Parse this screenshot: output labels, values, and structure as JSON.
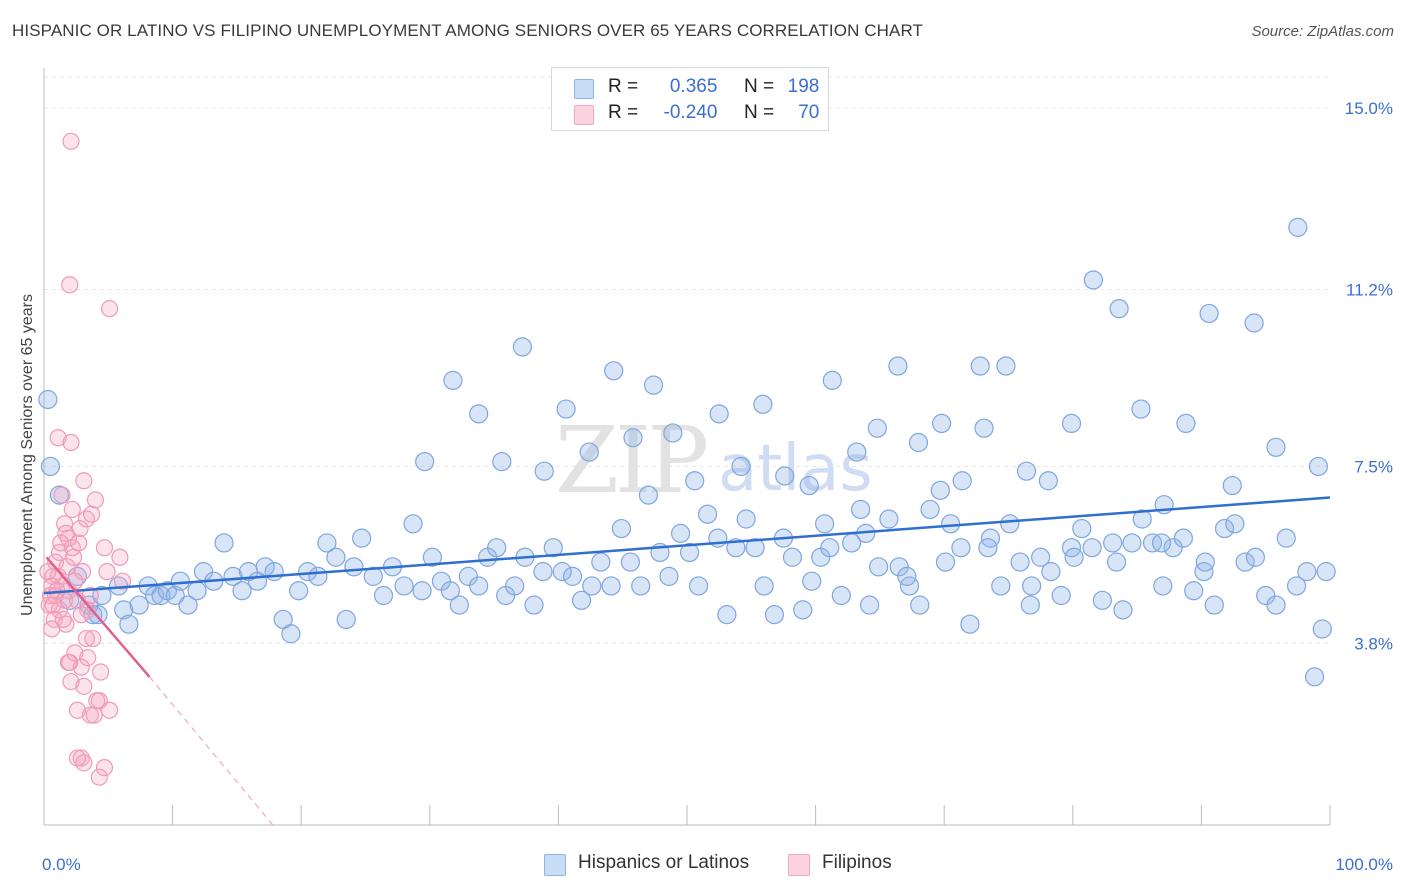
{
  "title": "HISPANIC OR LATINO VS FILIPINO UNEMPLOYMENT AMONG SENIORS OVER 65 YEARS CORRELATION CHART",
  "source": "Source: ZipAtlas.com",
  "watermark": "ZIPatlas",
  "colors": {
    "blue": "#8fb4e8",
    "blue_line": "#2f6fd0",
    "pink": "#f4a7c0",
    "pink_line": "#e0608f",
    "axis_text": "#3a6fd0"
  },
  "legend": {
    "rows": [
      {
        "r_label": "R =",
        "r_value": "0.365",
        "n_label": "N =",
        "n_value": "198",
        "color": "#8fb4e8"
      },
      {
        "r_label": "R =",
        "r_value": "-0.240",
        "n_label": "N =",
        "n_value": "70",
        "color": "#f4a7c0"
      }
    ]
  },
  "bottom_legend": [
    {
      "label": "Hispanics or Latinos",
      "color": "#8fb4e8"
    },
    {
      "label": "Filipinos",
      "color": "#f4a7c0"
    }
  ],
  "chart_data": {
    "type": "scatter",
    "title": "HISPANIC OR LATINO VS FILIPINO UNEMPLOYMENT AMONG SENIORS OVER 65 YEARS CORRELATION CHART",
    "xlabel": "",
    "ylabel": "Unemployment Among Seniors over 65 years",
    "xlim": [
      0,
      100
    ],
    "ylim": [
      0.0,
      15.75
    ],
    "x_tick_labels": [
      "0.0%",
      "100.0%"
    ],
    "y_ticks": [
      3.8,
      7.5,
      11.2,
      15.0
    ],
    "y_tick_labels": [
      "3.8%",
      "7.5%",
      "11.2%",
      "15.0%"
    ],
    "grid": true,
    "legend_position": "top-center",
    "series": [
      {
        "name": "Hispanics or Latinos",
        "trend": {
          "x": [
            0,
            100
          ],
          "y": [
            4.85,
            6.85
          ]
        },
        "points": [
          [
            0.3,
            8.9
          ],
          [
            0.5,
            7.5
          ],
          [
            1.2,
            6.9
          ],
          [
            2.0,
            4.7
          ],
          [
            2.6,
            5.2
          ],
          [
            3.5,
            4.6
          ],
          [
            3.8,
            4.4
          ],
          [
            4.2,
            4.4
          ],
          [
            4.5,
            4.8
          ],
          [
            5.8,
            5.0
          ],
          [
            6.2,
            4.5
          ],
          [
            6.6,
            4.2
          ],
          [
            7.4,
            4.6
          ],
          [
            8.1,
            5.0
          ],
          [
            8.6,
            4.8
          ],
          [
            9.1,
            4.8
          ],
          [
            9.6,
            4.9
          ],
          [
            10.2,
            4.8
          ],
          [
            10.6,
            5.1
          ],
          [
            11.2,
            4.6
          ],
          [
            11.9,
            4.9
          ],
          [
            12.4,
            5.3
          ],
          [
            13.2,
            5.1
          ],
          [
            14.0,
            5.9
          ],
          [
            14.7,
            5.2
          ],
          [
            15.4,
            4.9
          ],
          [
            15.9,
            5.3
          ],
          [
            16.6,
            5.1
          ],
          [
            17.2,
            5.4
          ],
          [
            17.9,
            5.3
          ],
          [
            18.6,
            4.3
          ],
          [
            19.2,
            4.0
          ],
          [
            19.8,
            4.9
          ],
          [
            20.5,
            5.3
          ],
          [
            21.3,
            5.2
          ],
          [
            22.0,
            5.9
          ],
          [
            22.7,
            5.6
          ],
          [
            23.5,
            4.3
          ],
          [
            24.1,
            5.4
          ],
          [
            24.7,
            6.0
          ],
          [
            25.6,
            5.2
          ],
          [
            26.4,
            4.8
          ],
          [
            27.1,
            5.4
          ],
          [
            28.0,
            5.0
          ],
          [
            28.7,
            6.3
          ],
          [
            29.4,
            4.9
          ],
          [
            30.2,
            5.6
          ],
          [
            30.9,
            5.1
          ],
          [
            31.6,
            4.9
          ],
          [
            32.3,
            4.6
          ],
          [
            33.0,
            5.2
          ],
          [
            33.8,
            5.0
          ],
          [
            34.5,
            5.6
          ],
          [
            35.2,
            5.8
          ],
          [
            35.9,
            4.8
          ],
          [
            36.6,
            5.0
          ],
          [
            37.4,
            5.6
          ],
          [
            38.1,
            4.6
          ],
          [
            38.8,
            5.3
          ],
          [
            39.6,
            5.8
          ],
          [
            40.3,
            5.3
          ],
          [
            41.1,
            5.2
          ],
          [
            41.8,
            4.7
          ],
          [
            42.6,
            5.0
          ],
          [
            43.3,
            5.5
          ],
          [
            44.1,
            5.0
          ],
          [
            44.9,
            6.2
          ],
          [
            45.6,
            5.5
          ],
          [
            46.4,
            5.0
          ],
          [
            47.0,
            6.9
          ],
          [
            47.9,
            5.7
          ],
          [
            48.6,
            5.2
          ],
          [
            49.5,
            6.1
          ],
          [
            50.2,
            5.7
          ],
          [
            50.9,
            5.0
          ],
          [
            51.6,
            6.5
          ],
          [
            52.4,
            6.0
          ],
          [
            53.1,
            4.4
          ],
          [
            53.8,
            5.8
          ],
          [
            54.6,
            6.4
          ],
          [
            55.3,
            5.8
          ],
          [
            56.0,
            5.0
          ],
          [
            56.8,
            4.4
          ],
          [
            57.5,
            6.0
          ],
          [
            58.2,
            5.6
          ],
          [
            59.0,
            4.5
          ],
          [
            59.7,
            5.1
          ],
          [
            60.4,
            5.6
          ],
          [
            61.1,
            5.8
          ],
          [
            62.0,
            4.8
          ],
          [
            62.8,
            5.9
          ],
          [
            63.5,
            6.6
          ],
          [
            64.2,
            4.6
          ],
          [
            64.9,
            5.4
          ],
          [
            65.7,
            6.4
          ],
          [
            66.5,
            5.4
          ],
          [
            67.3,
            5.0
          ],
          [
            68.1,
            4.6
          ],
          [
            68.9,
            6.6
          ],
          [
            69.7,
            7.0
          ],
          [
            70.5,
            6.3
          ],
          [
            71.3,
            5.8
          ],
          [
            72.0,
            4.2
          ],
          [
            72.8,
            9.6
          ],
          [
            73.6,
            6.0
          ],
          [
            74.4,
            5.0
          ],
          [
            75.1,
            6.3
          ],
          [
            75.9,
            5.5
          ],
          [
            76.7,
            4.6
          ],
          [
            77.5,
            5.6
          ],
          [
            78.3,
            5.3
          ],
          [
            79.1,
            4.8
          ],
          [
            79.9,
            5.8
          ],
          [
            80.7,
            6.2
          ],
          [
            81.5,
            5.8
          ],
          [
            82.3,
            4.7
          ],
          [
            83.1,
            5.9
          ],
          [
            83.9,
            4.5
          ],
          [
            84.6,
            5.9
          ],
          [
            85.4,
            6.4
          ],
          [
            86.2,
            5.9
          ],
          [
            87.0,
            5.0
          ],
          [
            87.8,
            5.8
          ],
          [
            88.6,
            6.0
          ],
          [
            89.4,
            4.9
          ],
          [
            90.2,
            5.3
          ],
          [
            91.0,
            4.6
          ],
          [
            91.8,
            6.2
          ],
          [
            92.6,
            6.3
          ],
          [
            93.4,
            5.5
          ],
          [
            94.2,
            5.6
          ],
          [
            95.0,
            4.8
          ],
          [
            95.8,
            4.6
          ],
          [
            96.6,
            6.0
          ],
          [
            97.4,
            5.0
          ],
          [
            98.2,
            5.3
          ],
          [
            98.8,
            3.1
          ],
          [
            99.4,
            4.1
          ],
          [
            99.7,
            5.3
          ],
          [
            29.6,
            7.6
          ],
          [
            31.8,
            9.3
          ],
          [
            33.8,
            8.6
          ],
          [
            35.6,
            7.6
          ],
          [
            37.2,
            10.0
          ],
          [
            38.9,
            7.4
          ],
          [
            40.6,
            8.7
          ],
          [
            42.4,
            7.8
          ],
          [
            44.3,
            9.5
          ],
          [
            45.8,
            8.1
          ],
          [
            47.4,
            9.2
          ],
          [
            48.9,
            8.2
          ],
          [
            50.6,
            7.2
          ],
          [
            52.5,
            8.6
          ],
          [
            54.2,
            7.5
          ],
          [
            55.9,
            8.8
          ],
          [
            57.6,
            7.3
          ],
          [
            59.5,
            7.1
          ],
          [
            61.3,
            9.3
          ],
          [
            63.2,
            7.8
          ],
          [
            64.8,
            8.3
          ],
          [
            66.4,
            9.6
          ],
          [
            68.0,
            8.0
          ],
          [
            69.8,
            8.4
          ],
          [
            71.4,
            7.2
          ],
          [
            73.1,
            8.3
          ],
          [
            74.8,
            9.6
          ],
          [
            76.4,
            7.4
          ],
          [
            78.1,
            7.2
          ],
          [
            79.9,
            8.4
          ],
          [
            81.6,
            11.4
          ],
          [
            83.6,
            10.8
          ],
          [
            85.3,
            8.7
          ],
          [
            87.1,
            6.7
          ],
          [
            88.8,
            8.4
          ],
          [
            90.6,
            10.7
          ],
          [
            92.4,
            7.1
          ],
          [
            94.1,
            10.5
          ],
          [
            95.8,
            7.9
          ],
          [
            97.5,
            12.5
          ],
          [
            99.1,
            7.5
          ],
          [
            60.7,
            6.3
          ],
          [
            63.9,
            6.1
          ],
          [
            67.1,
            5.2
          ],
          [
            70.1,
            5.5
          ],
          [
            73.4,
            5.8
          ],
          [
            76.8,
            5.0
          ],
          [
            80.1,
            5.6
          ],
          [
            83.4,
            5.5
          ],
          [
            86.9,
            5.9
          ],
          [
            90.3,
            5.5
          ]
        ]
      },
      {
        "name": "Filipinos",
        "trend": {
          "x": [
            0.2,
            8.2
          ],
          "y": [
            5.6,
            3.1
          ]
        },
        "trend_dashed": {
          "x": [
            8.2,
            17.8
          ],
          "y": [
            3.1,
            0.0
          ]
        },
        "points": [
          [
            2.1,
            14.3
          ],
          [
            2.0,
            11.3
          ],
          [
            5.1,
            10.8
          ],
          [
            1.1,
            8.1
          ],
          [
            2.1,
            8.0
          ],
          [
            3.1,
            7.2
          ],
          [
            1.4,
            6.9
          ],
          [
            4.0,
            6.8
          ],
          [
            2.2,
            6.6
          ],
          [
            3.3,
            6.4
          ],
          [
            1.6,
            6.3
          ],
          [
            2.8,
            6.2
          ],
          [
            1.9,
            6.0
          ],
          [
            4.7,
            5.8
          ],
          [
            1.2,
            5.7
          ],
          [
            2.3,
            5.6
          ],
          [
            0.9,
            5.5
          ],
          [
            1.8,
            5.4
          ],
          [
            3.0,
            5.3
          ],
          [
            0.7,
            5.2
          ],
          [
            1.1,
            5.2
          ],
          [
            2.4,
            5.1
          ],
          [
            0.6,
            5.0
          ],
          [
            1.4,
            5.0
          ],
          [
            1.9,
            4.9
          ],
          [
            0.5,
            4.8
          ],
          [
            0.9,
            4.8
          ],
          [
            1.6,
            4.7
          ],
          [
            2.6,
            4.7
          ],
          [
            0.4,
            4.6
          ],
          [
            1.2,
            4.5
          ],
          [
            3.4,
            4.5
          ],
          [
            0.8,
            4.3
          ],
          [
            1.7,
            4.2
          ],
          [
            2.9,
            4.4
          ],
          [
            0.6,
            4.1
          ],
          [
            3.8,
            3.9
          ],
          [
            2.4,
            3.6
          ],
          [
            3.4,
            3.5
          ],
          [
            1.9,
            3.4
          ],
          [
            2.9,
            3.3
          ],
          [
            4.4,
            3.2
          ],
          [
            2.1,
            3.0
          ],
          [
            3.1,
            2.9
          ],
          [
            4.3,
            2.6
          ],
          [
            2.6,
            2.4
          ],
          [
            3.6,
            2.3
          ],
          [
            5.1,
            2.4
          ],
          [
            3.9,
            2.3
          ],
          [
            2.9,
            1.4
          ],
          [
            3.1,
            1.3
          ],
          [
            4.7,
            1.2
          ],
          [
            4.3,
            1.0
          ],
          [
            2.6,
            1.4
          ],
          [
            1.7,
            6.1
          ],
          [
            3.6,
            4.8
          ],
          [
            4.9,
            5.3
          ],
          [
            5.9,
            5.6
          ],
          [
            6.1,
            5.1
          ],
          [
            2.2,
            5.8
          ],
          [
            1.0,
            4.9
          ],
          [
            0.3,
            5.3
          ],
          [
            3.3,
            3.9
          ],
          [
            2.0,
            3.4
          ],
          [
            4.1,
            2.6
          ],
          [
            1.5,
            4.3
          ],
          [
            2.7,
            5.9
          ],
          [
            0.7,
            4.6
          ],
          [
            3.7,
            6.5
          ],
          [
            1.3,
            5.9
          ]
        ]
      }
    ]
  },
  "axes": {
    "ylabel": "Unemployment Among Seniors over 65 years",
    "x_tick_labels": [
      "0.0%",
      "100.0%"
    ],
    "y_tick_labels": [
      "3.8%",
      "7.5%",
      "11.2%",
      "15.0%"
    ]
  }
}
